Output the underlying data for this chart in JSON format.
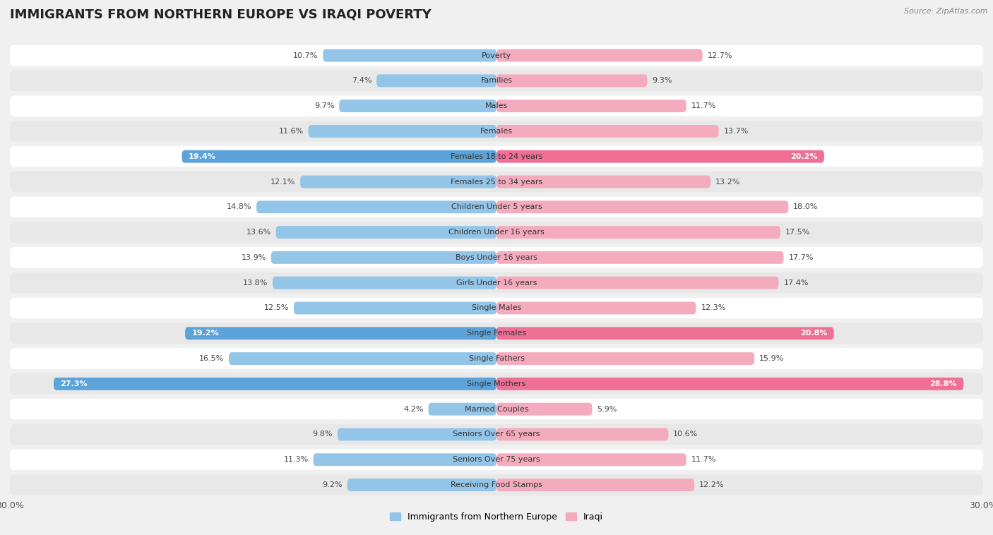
{
  "title": "IMMIGRANTS FROM NORTHERN EUROPE VS IRAQI POVERTY",
  "source": "Source: ZipAtlas.com",
  "categories": [
    "Poverty",
    "Families",
    "Males",
    "Females",
    "Females 18 to 24 years",
    "Females 25 to 34 years",
    "Children Under 5 years",
    "Children Under 16 years",
    "Boys Under 16 years",
    "Girls Under 16 years",
    "Single Males",
    "Single Females",
    "Single Fathers",
    "Single Mothers",
    "Married Couples",
    "Seniors Over 65 years",
    "Seniors Over 75 years",
    "Receiving Food Stamps"
  ],
  "left_values": [
    10.7,
    7.4,
    9.7,
    11.6,
    19.4,
    12.1,
    14.8,
    13.6,
    13.9,
    13.8,
    12.5,
    19.2,
    16.5,
    27.3,
    4.2,
    9.8,
    11.3,
    9.2
  ],
  "right_values": [
    12.7,
    9.3,
    11.7,
    13.7,
    20.2,
    13.2,
    18.0,
    17.5,
    17.7,
    17.4,
    12.3,
    20.8,
    15.9,
    28.8,
    5.9,
    10.6,
    11.7,
    12.2
  ],
  "left_color_normal": "#92C5E8",
  "right_color_normal": "#F5ABBE",
  "left_color_highlight": "#5BA3D9",
  "right_color_highlight": "#EF6F95",
  "highlight_rows": [
    4,
    11,
    13
  ],
  "left_label": "Immigrants from Northern Europe",
  "right_label": "Iraqi",
  "xlim": 30.0,
  "bg_color": "#f0f0f0",
  "row_colors": [
    "#ffffff",
    "#e8e8e8"
  ],
  "title_fontsize": 13,
  "source_fontsize": 8,
  "value_fontsize": 8,
  "category_fontsize": 8,
  "legend_fontsize": 9
}
